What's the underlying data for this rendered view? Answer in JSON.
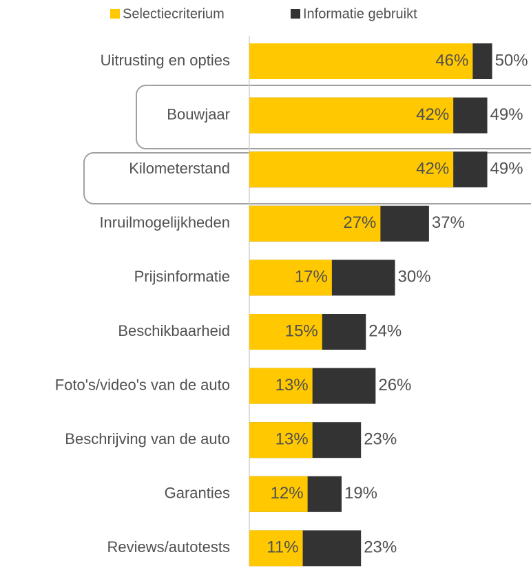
{
  "chart_data": {
    "type": "bar",
    "orientation": "horizontal",
    "categories": [
      "Uitrusting en opties",
      "Bouwjaar",
      "Kilometerstand",
      "Inruilmogelijkheden",
      "Prijsinformatie",
      "Beschikbaarheid",
      "Foto's/video's van de auto",
      "Beschrijving van de auto",
      "Garanties",
      "Reviews/autotests"
    ],
    "series": [
      {
        "name": "Selectiecriterium",
        "color": "#ffc800",
        "values": [
          46,
          42,
          42,
          27,
          17,
          15,
          13,
          13,
          12,
          11
        ],
        "value_labels": [
          "46%",
          "42%",
          "42%",
          "27%",
          "17%",
          "15%",
          "13%",
          "13%",
          "12%",
          "11%"
        ]
      },
      {
        "name": "Informatie gebruikt",
        "color": "#333333",
        "values": [
          50,
          49,
          49,
          37,
          30,
          24,
          26,
          23,
          19,
          23
        ],
        "value_labels": [
          "50%",
          "49%",
          "49%",
          "37%",
          "30%",
          "24%",
          "26%",
          "23%",
          "19%",
          "23%"
        ]
      }
    ],
    "xlim": [
      0,
      58
    ],
    "legend": "top"
  }
}
